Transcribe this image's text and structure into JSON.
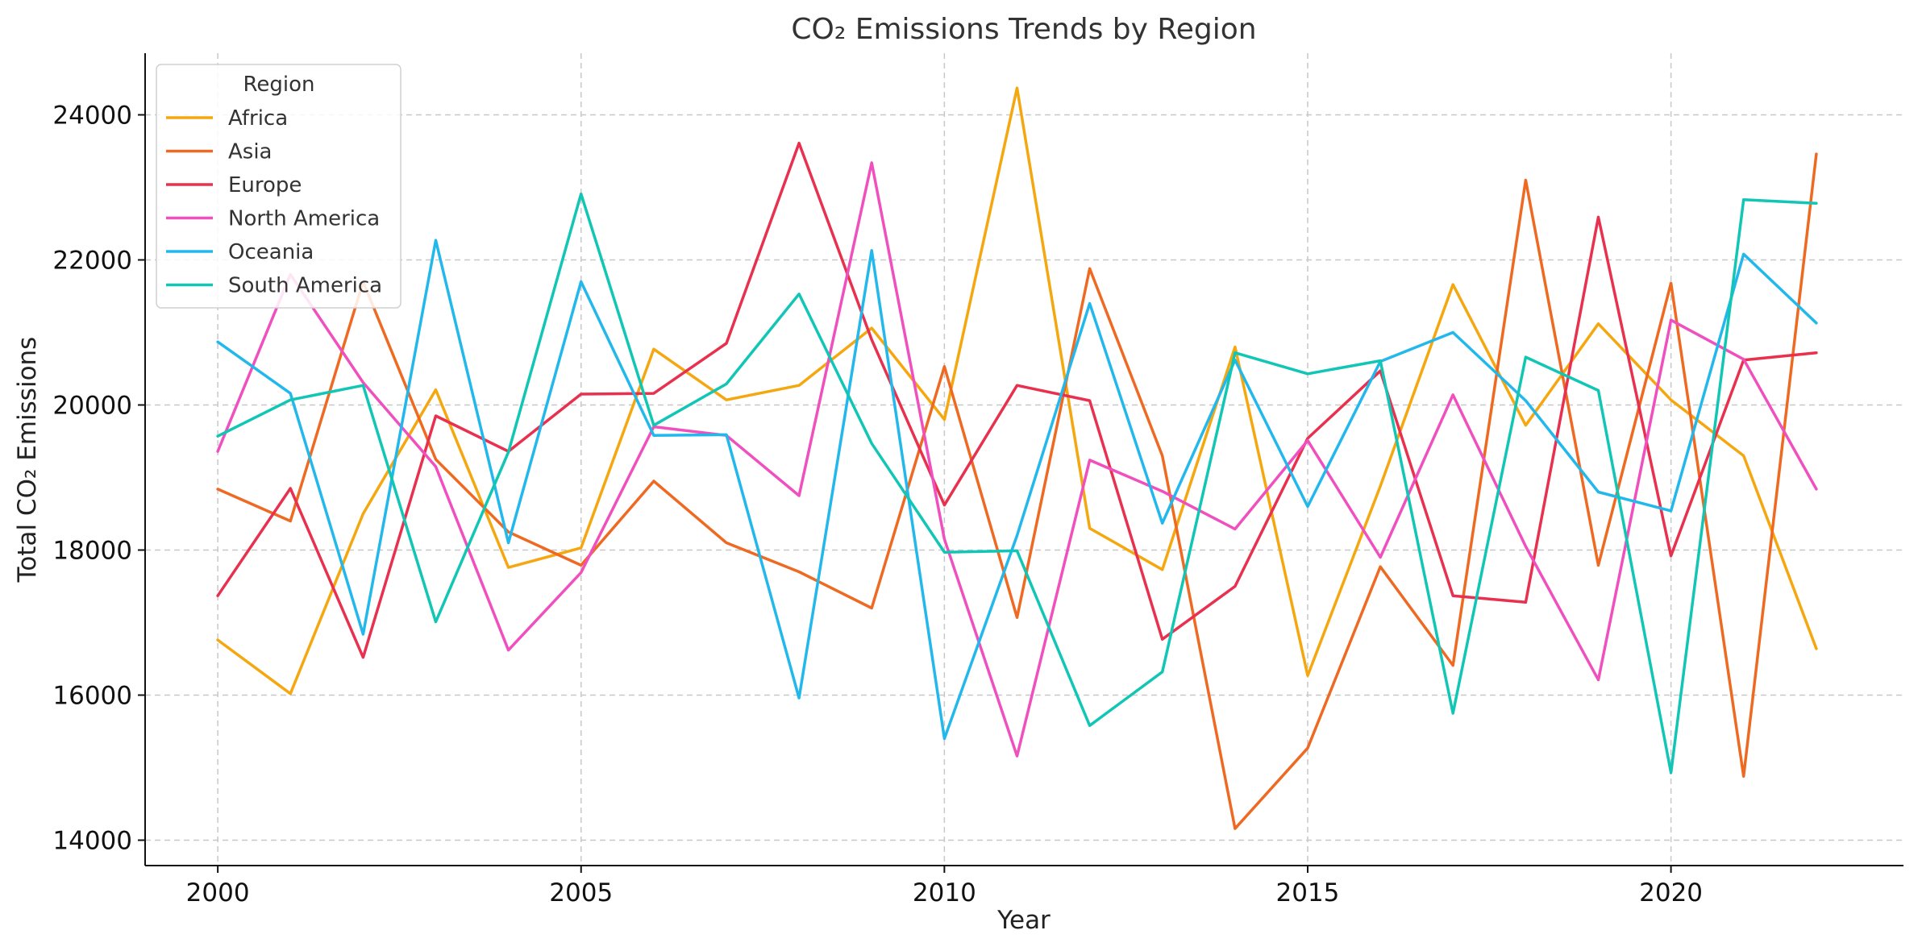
{
  "chart_data": {
    "type": "line",
    "title": "CO₂ Emissions Trends by Region",
    "xlabel": "Year",
    "ylabel": "Total CO₂ Emissions",
    "xlim": [
      1999,
      2023.2
    ],
    "ylim": [
      13650,
      24850
    ],
    "xticks": [
      2000,
      2005,
      2010,
      2015,
      2020
    ],
    "yticks": [
      14000,
      16000,
      18000,
      20000,
      22000,
      24000
    ],
    "grid": true,
    "legend": {
      "title": "Region",
      "placement": "top-left"
    },
    "x": [
      2000,
      2001,
      2002,
      2003,
      2004,
      2005,
      2006,
      2007,
      2008,
      2009,
      2010,
      2011,
      2012,
      2013,
      2014,
      2015,
      2016,
      2017,
      2018,
      2019,
      2020,
      2021,
      2022
    ],
    "series": [
      {
        "name": "Africa",
        "color": "#F5A70F",
        "values": [
          16760,
          16020,
          18500,
          20210,
          17760,
          18030,
          20770,
          20070,
          20270,
          21060,
          19800,
          24370,
          18300,
          17730,
          20800,
          16270,
          18880,
          21660,
          19720,
          21120,
          20070,
          19300,
          16640
        ]
      },
      {
        "name": "Asia",
        "color": "#EE6A22",
        "values": [
          18840,
          18400,
          21700,
          19250,
          18250,
          17790,
          18950,
          18100,
          17700,
          17200,
          20530,
          17070,
          21880,
          19300,
          14160,
          15270,
          17770,
          16410,
          23100,
          17790,
          21680,
          14880,
          23460
        ]
      },
      {
        "name": "Europe",
        "color": "#E8304F",
        "values": [
          17370,
          18850,
          16520,
          19850,
          19360,
          20150,
          20160,
          20850,
          23610,
          20900,
          18620,
          20270,
          20060,
          16770,
          17500,
          19540,
          20470,
          17370,
          17280,
          22590,
          17920,
          20620,
          20720
        ]
      },
      {
        "name": "North America",
        "color": "#F050BE",
        "values": [
          19360,
          21800,
          20310,
          19150,
          16620,
          17690,
          19700,
          19580,
          18750,
          23340,
          18150,
          15160,
          19240,
          18810,
          18290,
          19510,
          17900,
          20140,
          18050,
          16210,
          21170,
          20630,
          18840
        ]
      },
      {
        "name": "Oceania",
        "color": "#23B8EC",
        "values": [
          20870,
          20160,
          16840,
          22270,
          18100,
          21700,
          19580,
          19590,
          15960,
          22130,
          15400,
          18200,
          21400,
          18370,
          20620,
          18600,
          20600,
          21000,
          20060,
          18800,
          18540,
          22080,
          21130
        ]
      },
      {
        "name": "South America",
        "color": "#12C6B5",
        "values": [
          19570,
          20070,
          20270,
          17010,
          19350,
          22910,
          19720,
          20290,
          21530,
          19470,
          17970,
          17990,
          15580,
          16320,
          20720,
          20430,
          20610,
          15750,
          20660,
          20200,
          14930,
          22830,
          22780
        ]
      }
    ]
  }
}
